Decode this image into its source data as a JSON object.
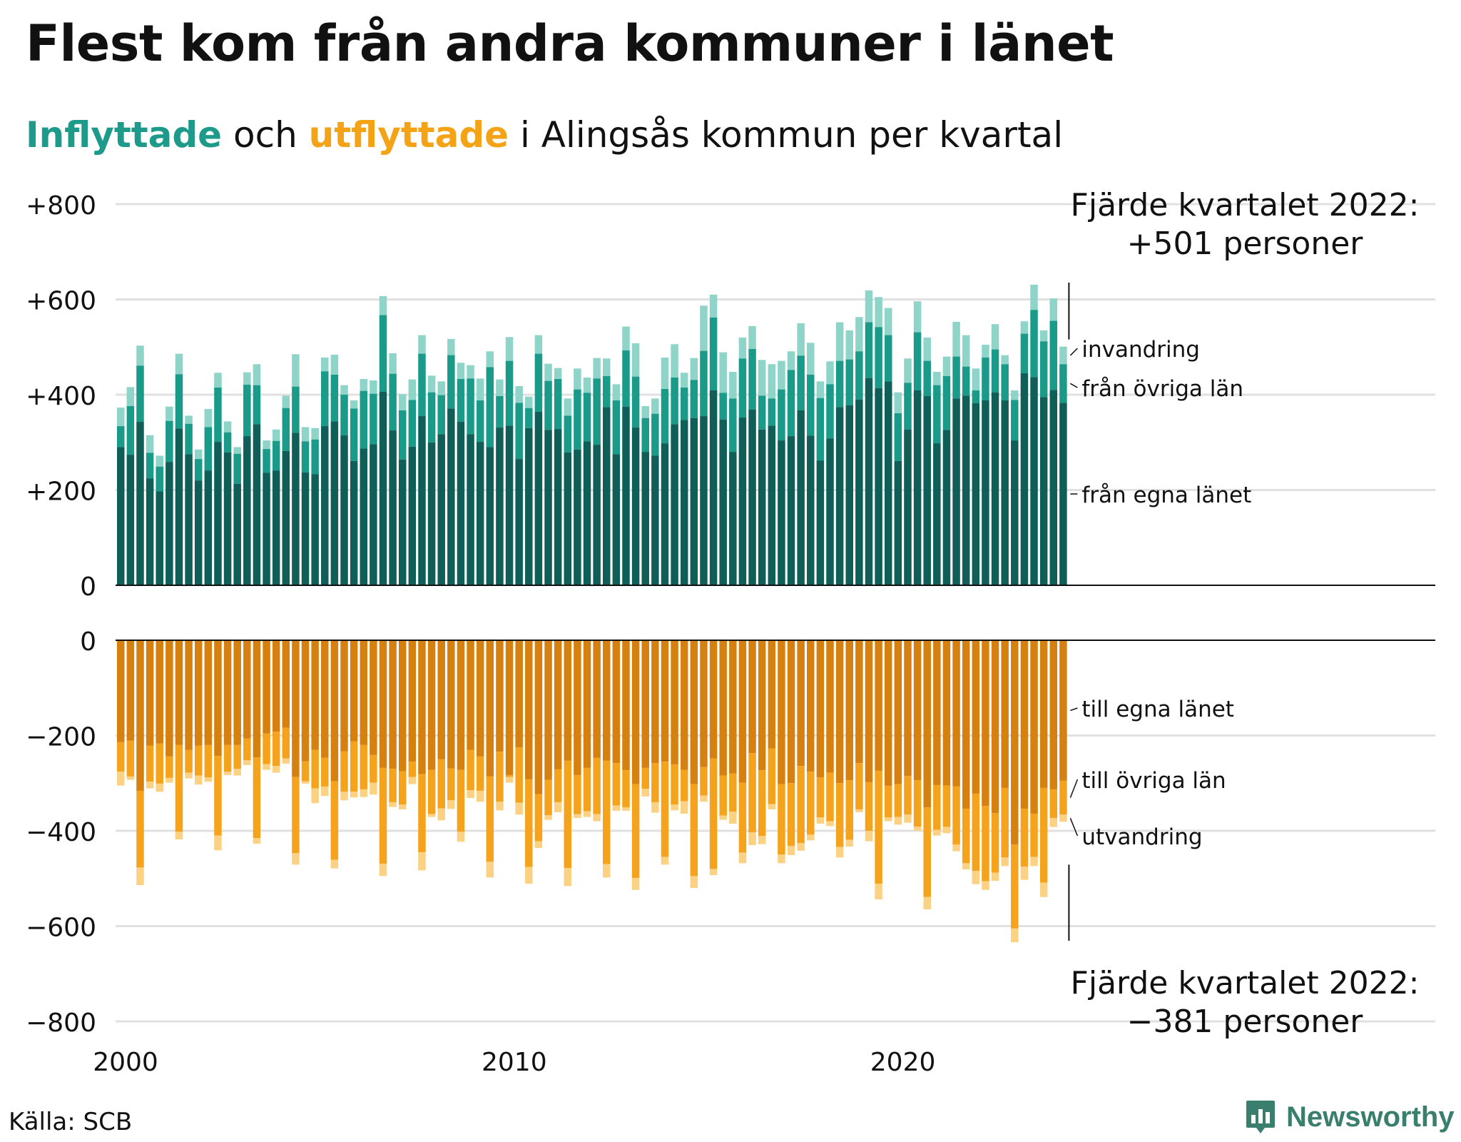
{
  "title": "Flest kom från andra kommuner i länet",
  "subtitle": {
    "in_word": "Inflyttade",
    "mid": " och ",
    "out_word": "utflyttade",
    "rest": " i Alingsås kommun per kvartal"
  },
  "source": "Källa: SCB",
  "brand": "Newsworthy",
  "colors": {
    "in_egna": "#0f5e57",
    "in_ovriga": "#1a9a89",
    "in_invandring": "#8fd4c9",
    "out_egna": "#d68010",
    "out_ovriga": "#f5a31c",
    "out_utvandring": "#fbd283",
    "grid": "#e1e1e1",
    "baseline": "#111111"
  },
  "chart_data": [
    {
      "type": "bar",
      "stacked": true,
      "title": "Inflyttade",
      "series_labels": [
        "från egna länet",
        "från övriga län",
        "invandring"
      ],
      "yticks": [
        "+800",
        "+600",
        "+400",
        "+200",
        "0"
      ],
      "ylim": [
        0,
        800
      ],
      "xticks": [
        "2000",
        "2010",
        "2020"
      ],
      "xlim": [
        "2000 Q1",
        "2024 Q4"
      ],
      "annotation": {
        "line1": "Fjärde kvartalet 2022:",
        "line2": "+501 personer"
      },
      "last_total": 501,
      "totals": [
        373,
        416,
        503,
        315,
        272,
        375,
        486,
        356,
        285,
        370,
        446,
        344,
        290,
        447,
        464,
        304,
        327,
        398,
        485,
        332,
        330,
        478,
        484,
        420,
        388,
        433,
        430,
        607,
        487,
        401,
        432,
        525,
        440,
        428,
        517,
        467,
        462,
        434,
        491,
        432,
        521,
        418,
        396,
        525,
        465,
        456,
        392,
        455,
        436,
        477,
        476,
        422,
        543,
        508,
        376,
        392,
        478,
        506,
        446,
        477,
        587,
        610,
        489,
        448,
        520,
        544,
        473,
        464,
        471,
        491,
        550,
        509,
        428,
        470,
        552,
        535,
        563,
        619,
        605,
        582,
        405,
        476,
        596,
        520,
        448,
        480,
        553,
        525,
        455,
        505,
        548,
        483,
        409,
        554,
        631,
        535,
        602,
        501
      ],
      "ovriga_tops": [
        334,
        376,
        461,
        278,
        249,
        345,
        443,
        339,
        265,
        332,
        415,
        321,
        276,
        421,
        420,
        286,
        303,
        372,
        417,
        302,
        306,
        449,
        442,
        400,
        371,
        408,
        402,
        567,
        444,
        367,
        389,
        486,
        405,
        399,
        483,
        433,
        434,
        388,
        458,
        397,
        471,
        383,
        372,
        486,
        429,
        433,
        356,
        411,
        404,
        434,
        439,
        388,
        493,
        438,
        351,
        360,
        412,
        436,
        415,
        431,
        492,
        562,
        404,
        392,
        476,
        496,
        398,
        392,
        411,
        452,
        482,
        442,
        393,
        422,
        471,
        474,
        491,
        552,
        542,
        525,
        361,
        425,
        531,
        471,
        420,
        439,
        480,
        459,
        409,
        478,
        495,
        464,
        389,
        528,
        578,
        512,
        555,
        464
      ],
      "egna": [
        290,
        274,
        343,
        224,
        197,
        259,
        329,
        275,
        220,
        241,
        301,
        279,
        213,
        313,
        338,
        236,
        241,
        282,
        320,
        237,
        233,
        334,
        344,
        315,
        261,
        287,
        296,
        406,
        325,
        264,
        291,
        355,
        300,
        317,
        371,
        343,
        317,
        301,
        290,
        331,
        335,
        265,
        330,
        364,
        326,
        328,
        279,
        285,
        302,
        295,
        374,
        275,
        375,
        331,
        280,
        272,
        298,
        338,
        347,
        351,
        355,
        409,
        348,
        280,
        352,
        369,
        327,
        335,
        304,
        313,
        367,
        314,
        262,
        308,
        374,
        378,
        390,
        435,
        414,
        428,
        261,
        327,
        409,
        397,
        298,
        326,
        392,
        398,
        382,
        388,
        405,
        388,
        304,
        445,
        437,
        395,
        410,
        383
      ]
    },
    {
      "type": "bar",
      "stacked": true,
      "title": "Utflyttade",
      "series_labels": [
        "till egna länet",
        "till övriga län",
        "utvandring"
      ],
      "yticks": [
        "0",
        "−200",
        "−400",
        "−600",
        "−800"
      ],
      "ylim": [
        -800,
        0
      ],
      "xticks": [
        "2000",
        "2010",
        "2020"
      ],
      "xlim": [
        "2000 Q1",
        "2024 Q4"
      ],
      "annotation": {
        "line1": "Fjärde kvartalet 2022:",
        "line2": "−381 personer"
      },
      "last_total": -381,
      "totals": [
        -305,
        -293,
        -514,
        -311,
        -318,
        -299,
        -418,
        -290,
        -303,
        -297,
        -441,
        -283,
        -284,
        -262,
        -427,
        -272,
        -278,
        -259,
        -471,
        -301,
        -342,
        -327,
        -479,
        -336,
        -330,
        -329,
        -324,
        -495,
        -350,
        -355,
        -302,
        -483,
        -371,
        -378,
        -354,
        -423,
        -331,
        -339,
        -498,
        -357,
        -299,
        -366,
        -511,
        -436,
        -377,
        -361,
        -516,
        -373,
        -371,
        -380,
        -498,
        -358,
        -358,
        -524,
        -328,
        -362,
        -471,
        -357,
        -364,
        -520,
        -339,
        -493,
        -377,
        -385,
        -468,
        -430,
        -428,
        -355,
        -468,
        -451,
        -442,
        -420,
        -385,
        -390,
        -456,
        -433,
        -361,
        -422,
        -544,
        -380,
        -387,
        -383,
        -400,
        -565,
        -410,
        -405,
        -443,
        -481,
        -512,
        -524,
        -505,
        -474,
        -634,
        -503,
        -474,
        -539,
        -392,
        -381
      ],
      "ovriga_tops": [
        -276,
        -286,
        -477,
        -297,
        -301,
        -289,
        -402,
        -278,
        -284,
        -288,
        -410,
        -276,
        -270,
        -252,
        -415,
        -260,
        -264,
        -248,
        -447,
        -296,
        -311,
        -307,
        -461,
        -318,
        -318,
        -313,
        -299,
        -469,
        -340,
        -345,
        -287,
        -445,
        -365,
        -353,
        -336,
        -402,
        -315,
        -316,
        -465,
        -339,
        -287,
        -341,
        -476,
        -422,
        -367,
        -340,
        -478,
        -365,
        -359,
        -365,
        -470,
        -347,
        -351,
        -499,
        -312,
        -340,
        -455,
        -345,
        -338,
        -495,
        -326,
        -480,
        -368,
        -360,
        -446,
        -403,
        -411,
        -344,
        -450,
        -432,
        -426,
        -408,
        -372,
        -380,
        -434,
        -419,
        -355,
        -400,
        -511,
        -372,
        -371,
        -366,
        -391,
        -539,
        -398,
        -392,
        -429,
        -468,
        -484,
        -506,
        -488,
        -456,
        -605,
        -475,
        -455,
        -509,
        -373,
        -366
      ],
      "egna": [
        -214,
        -211,
        -316,
        -221,
        -217,
        -244,
        -220,
        -230,
        -221,
        -220,
        -243,
        -220,
        -220,
        -206,
        -246,
        -196,
        -192,
        -184,
        -287,
        -254,
        -230,
        -247,
        -296,
        -233,
        -212,
        -220,
        -241,
        -268,
        -270,
        -275,
        -255,
        -281,
        -272,
        -250,
        -269,
        -272,
        -230,
        -244,
        -286,
        -234,
        -283,
        -225,
        -292,
        -323,
        -293,
        -271,
        -253,
        -283,
        -268,
        -247,
        -253,
        -258,
        -273,
        -302,
        -268,
        -258,
        -255,
        -261,
        -272,
        -302,
        -266,
        -248,
        -284,
        -280,
        -299,
        -237,
        -273,
        -227,
        -302,
        -300,
        -264,
        -276,
        -288,
        -278,
        -300,
        -294,
        -258,
        -298,
        -274,
        -306,
        -302,
        -285,
        -294,
        -351,
        -304,
        -305,
        -307,
        -354,
        -322,
        -348,
        -363,
        -310,
        -429,
        -354,
        -364,
        -310,
        -313,
        -295
      ]
    }
  ]
}
